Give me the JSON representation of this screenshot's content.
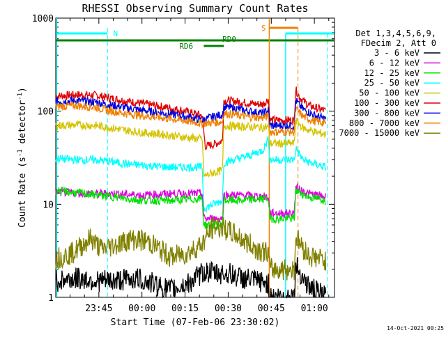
{
  "chart_data": {
    "type": "line",
    "title": "RHESSI Observing Summary Count Rates",
    "xlabel": "Start Time (07-Feb-06 23:30:02)",
    "ylabel_main": "Count Rate (s",
    "ylabel_sup1": "-1",
    "ylabel_mid": " detector",
    "ylabel_sup2": "-1",
    "ylabel_end": ")",
    "y_scale": "log",
    "ylim": [
      1,
      1000
    ],
    "x_range_minutes": [
      "23:30:02",
      "01:07:00"
    ],
    "y_ticks": [
      {
        "value": 1,
        "label": "1"
      },
      {
        "value": 10,
        "label": "10"
      },
      {
        "value": 100,
        "label": "100"
      },
      {
        "value": 1000,
        "label": "1000"
      }
    ],
    "x_ticks": [
      {
        "minute": 45,
        "label": "23:45"
      },
      {
        "minute": 60,
        "label": "00:00"
      },
      {
        "minute": 75,
        "label": "00:15"
      },
      {
        "minute": 90,
        "label": "00:30"
      },
      {
        "minute": 105,
        "label": "00:45"
      },
      {
        "minute": 120,
        "label": "01:00"
      }
    ],
    "legend_header": [
      "Det 1,3,4,5,6,9,",
      "FDecim 2, Att 0"
    ],
    "legend_entries": [
      {
        "label": "3 - 6 keV",
        "color": "#000000"
      },
      {
        "label": "6 - 12 keV",
        "color": "#e000e0"
      },
      {
        "label": "12 - 25 keV",
        "color": "#00e000"
      },
      {
        "label": "25 - 50 keV",
        "color": "#00ffff"
      },
      {
        "label": "50 - 100 keV",
        "color": "#d4c400"
      },
      {
        "label": "100 - 300 keV",
        "color": "#e00000"
      },
      {
        "label": "300 - 800 keV",
        "color": "#0000e0"
      },
      {
        "label": "800 - 7000 keV",
        "color": "#f08000"
      },
      {
        "label": "7000 - 15000 keV",
        "color": "#808000"
      }
    ],
    "flag_labels": {
      "night": "N",
      "saa": "S",
      "rd0": "RD0",
      "rd6": "RD6"
    },
    "series": [
      {
        "name": "100 - 300 keV",
        "color": "#e00000",
        "points": [
          [
            30,
            145
          ],
          [
            37,
            150
          ],
          [
            44,
            148
          ],
          [
            48,
            140
          ],
          [
            55,
            128
          ],
          [
            62,
            118
          ],
          [
            70,
            108
          ],
          [
            76,
            98
          ],
          [
            81,
            90
          ],
          [
            82,
            42
          ],
          [
            85,
            44
          ],
          [
            88,
            48
          ],
          [
            88.5,
            130
          ],
          [
            92,
            128
          ],
          [
            97,
            122
          ],
          [
            102,
            118
          ],
          [
            104,
            135
          ],
          [
            104.5,
            80
          ],
          [
            113,
            80
          ],
          [
            113.5,
            170
          ],
          [
            115,
            140
          ],
          [
            118,
            115
          ],
          [
            122,
            105
          ],
          [
            124,
            100
          ]
        ]
      },
      {
        "name": "300 - 800 keV",
        "color": "#0000e0",
        "points": [
          [
            30,
            128
          ],
          [
            37,
            130
          ],
          [
            44,
            125
          ],
          [
            48,
            118
          ],
          [
            55,
            108
          ],
          [
            62,
            100
          ],
          [
            70,
            93
          ],
          [
            76,
            87
          ],
          [
            81,
            80
          ],
          [
            84,
            86
          ],
          [
            88,
            92
          ],
          [
            88.5,
            110
          ],
          [
            92,
            108
          ],
          [
            97,
            100
          ],
          [
            102,
            95
          ],
          [
            104,
            103
          ],
          [
            104.5,
            70
          ],
          [
            113,
            70
          ],
          [
            113.5,
            130
          ],
          [
            116,
            105
          ],
          [
            120,
            90
          ],
          [
            124,
            82
          ]
        ]
      },
      {
        "name": "800 - 7000 keV",
        "color": "#f08000",
        "points": [
          [
            30,
            112
          ],
          [
            37,
            115
          ],
          [
            44,
            110
          ],
          [
            48,
            102
          ],
          [
            55,
            94
          ],
          [
            62,
            88
          ],
          [
            70,
            83
          ],
          [
            76,
            78
          ],
          [
            81,
            74
          ],
          [
            84,
            75
          ],
          [
            88,
            77
          ],
          [
            88.5,
            95
          ],
          [
            92,
            92
          ],
          [
            97,
            87
          ],
          [
            102,
            85
          ],
          [
            104,
            88
          ],
          [
            104.5,
            60
          ],
          [
            113,
            60
          ],
          [
            113.5,
            105
          ],
          [
            116,
            88
          ],
          [
            120,
            78
          ],
          [
            124,
            74
          ]
        ]
      },
      {
        "name": "50 - 100 keV",
        "color": "#d4c400",
        "points": [
          [
            30,
            70
          ],
          [
            37,
            71
          ],
          [
            44,
            70
          ],
          [
            48,
            67
          ],
          [
            55,
            62
          ],
          [
            62,
            58
          ],
          [
            70,
            55
          ],
          [
            76,
            52
          ],
          [
            81,
            50
          ],
          [
            81.5,
            20
          ],
          [
            85,
            22
          ],
          [
            88,
            23
          ],
          [
            88.5,
            70
          ],
          [
            92,
            69
          ],
          [
            97,
            68
          ],
          [
            102,
            67
          ],
          [
            104,
            68
          ],
          [
            104.5,
            45
          ],
          [
            113,
            45
          ],
          [
            113.5,
            80
          ],
          [
            116,
            66
          ],
          [
            120,
            60
          ],
          [
            124,
            56
          ]
        ]
      },
      {
        "name": "25 - 50 keV",
        "color": "#00ffff",
        "points": [
          [
            30,
            31
          ],
          [
            37,
            30
          ],
          [
            44,
            30
          ],
          [
            48,
            29
          ],
          [
            55,
            27
          ],
          [
            62,
            26
          ],
          [
            70,
            25
          ],
          [
            76,
            25
          ],
          [
            81,
            25
          ],
          [
            81.5,
            9
          ],
          [
            85,
            10
          ],
          [
            88,
            11
          ],
          [
            88.5,
            28
          ],
          [
            92,
            30
          ],
          [
            97,
            33
          ],
          [
            102,
            38
          ],
          [
            104,
            50
          ],
          [
            104.5,
            30
          ],
          [
            113,
            30
          ],
          [
            113.5,
            40
          ],
          [
            116,
            30
          ],
          [
            120,
            27
          ],
          [
            124,
            25
          ]
        ]
      },
      {
        "name": "6 - 12 keV",
        "color": "#e000e0",
        "points": [
          [
            30,
            13.5
          ],
          [
            40,
            13
          ],
          [
            50,
            13
          ],
          [
            60,
            12.5
          ],
          [
            70,
            13
          ],
          [
            81,
            13
          ],
          [
            81.5,
            7
          ],
          [
            88,
            7
          ],
          [
            88.5,
            12.5
          ],
          [
            95,
            12.5
          ],
          [
            104,
            12
          ],
          [
            104.5,
            8
          ],
          [
            113,
            8
          ],
          [
            113.5,
            15
          ],
          [
            118,
            13
          ],
          [
            124,
            12
          ]
        ]
      },
      {
        "name": "12 - 25 keV",
        "color": "#00e000",
        "points": [
          [
            30,
            14
          ],
          [
            40,
            13
          ],
          [
            50,
            12
          ],
          [
            60,
            11
          ],
          [
            70,
            11
          ],
          [
            81,
            11.5
          ],
          [
            81.5,
            6
          ],
          [
            88,
            6
          ],
          [
            88.5,
            11
          ],
          [
            95,
            11
          ],
          [
            104,
            11.5
          ],
          [
            104.5,
            7
          ],
          [
            113,
            7
          ],
          [
            113.5,
            14
          ],
          [
            118,
            12
          ],
          [
            124,
            11
          ]
        ]
      },
      {
        "name": "7000 - 15000 keV",
        "color": "#808000",
        "points": [
          [
            30,
            2.6
          ],
          [
            36,
            3
          ],
          [
            42,
            4.3
          ],
          [
            46,
            3.3
          ],
          [
            50,
            3.6
          ],
          [
            56,
            4.2
          ],
          [
            62,
            4
          ],
          [
            66,
            3.3
          ],
          [
            70,
            2.7
          ],
          [
            76,
            3
          ],
          [
            81,
            3.8
          ],
          [
            85,
            5.8
          ],
          [
            88,
            5.6
          ],
          [
            92,
            4.8
          ],
          [
            97,
            3.8
          ],
          [
            100,
            3.3
          ],
          [
            104,
            3
          ],
          [
            104.5,
            2
          ],
          [
            113,
            2
          ],
          [
            113.5,
            4.5
          ],
          [
            118,
            2.8
          ],
          [
            124,
            2.5
          ]
        ]
      },
      {
        "name": "3 - 6 keV",
        "color": "#000000",
        "points": [
          [
            30,
            1.5
          ],
          [
            38,
            1.6
          ],
          [
            44,
            1.5
          ],
          [
            50,
            1.5
          ],
          [
            58,
            1.6
          ],
          [
            64,
            1.4
          ],
          [
            70,
            1.2
          ],
          [
            76,
            1.4
          ],
          [
            82,
            1.9
          ],
          [
            86,
            1.8
          ],
          [
            90,
            1.8
          ],
          [
            95,
            1.6
          ],
          [
            100,
            1.5
          ],
          [
            104,
            1.4
          ],
          [
            104.5,
            1
          ],
          [
            113,
            1
          ],
          [
            113.5,
            2.2
          ],
          [
            118,
            1.3
          ],
          [
            124,
            1
          ]
        ]
      }
    ]
  }
}
